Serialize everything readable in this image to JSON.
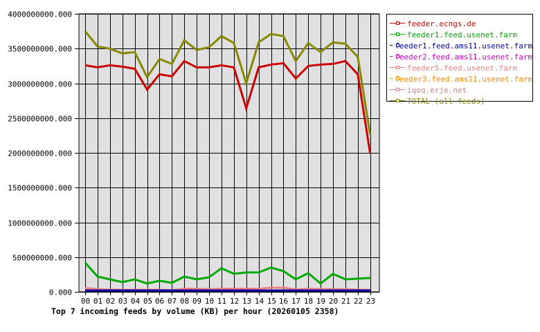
{
  "chart_data": {
    "type": "line",
    "title": "Top 7 incoming feeds by volume (KB) per hour (20260105 2358)",
    "xlabel": "",
    "ylabel": "",
    "ylim": [
      0,
      4000000000
    ],
    "grid": true,
    "legend_position": "right",
    "x": [
      "00",
      "01",
      "02",
      "03",
      "04",
      "05",
      "06",
      "07",
      "08",
      "09",
      "10",
      "11",
      "12",
      "13",
      "14",
      "15",
      "16",
      "17",
      "18",
      "19",
      "20",
      "21",
      "22",
      "23"
    ],
    "yticks": [
      "0.000",
      "500000000.000",
      "1000000000.000",
      "1500000000.000",
      "2000000000.000",
      "2500000000.000",
      "3000000000.000",
      "3500000000.000",
      "4000000000.000"
    ],
    "series": [
      {
        "name": "feeder.ecngs.de",
        "color": "#cc0000",
        "values": [
          3260000000,
          3230000000,
          3260000000,
          3240000000,
          3210000000,
          2910000000,
          3130000000,
          3100000000,
          3320000000,
          3230000000,
          3230000000,
          3260000000,
          3230000000,
          2640000000,
          3230000000,
          3270000000,
          3290000000,
          3070000000,
          3250000000,
          3270000000,
          3280000000,
          3320000000,
          3130000000,
          1990000000
        ]
      },
      {
        "name": "feeder1.feed.usenet.farm",
        "color": "#00aa00",
        "values": [
          420000000,
          220000000,
          180000000,
          140000000,
          180000000,
          120000000,
          160000000,
          130000000,
          220000000,
          180000000,
          210000000,
          340000000,
          260000000,
          280000000,
          280000000,
          350000000,
          300000000,
          180000000,
          270000000,
          120000000,
          260000000,
          180000000,
          190000000,
          200000000
        ]
      },
      {
        "name": "feeder1.feed.ams11.usenet.farm",
        "color": "#0000aa",
        "values": [
          0,
          0,
          0,
          0,
          0,
          0,
          0,
          0,
          0,
          0,
          0,
          0,
          0,
          0,
          0,
          20000000,
          0,
          0,
          0,
          0,
          0,
          0,
          0,
          0
        ]
      },
      {
        "name": "feeder2.feed.ams11.usenet.farm",
        "color": "#cc00cc",
        "values": [
          0,
          0,
          0,
          0,
          0,
          0,
          0,
          0,
          0,
          0,
          0,
          0,
          0,
          0,
          0,
          0,
          0,
          0,
          0,
          0,
          0,
          0,
          0,
          0
        ]
      },
      {
        "name": "feeder5.feed.usenet.farm",
        "color": "#f08080",
        "values": [
          55000000,
          40000000,
          30000000,
          30000000,
          30000000,
          30000000,
          30000000,
          25000000,
          45000000,
          45000000,
          40000000,
          45000000,
          45000000,
          45000000,
          45000000,
          60000000,
          60000000,
          35000000,
          45000000,
          40000000,
          40000000,
          40000000,
          30000000,
          30000000
        ]
      },
      {
        "name": "feeder3.feed.ams11.usenet.farm",
        "color": "#ff8800",
        "values": [
          5000000,
          5000000,
          5000000,
          5000000,
          5000000,
          5000000,
          5000000,
          5000000,
          5000000,
          5000000,
          5000000,
          5000000,
          5000000,
          5000000,
          5000000,
          5000000,
          5000000,
          5000000,
          5000000,
          5000000,
          5000000,
          5000000,
          5000000,
          5000000
        ]
      },
      {
        "name": "iqoq.erje.net",
        "color": "#cc8888",
        "values": [
          5000000,
          5000000,
          5000000,
          5000000,
          5000000,
          5000000,
          5000000,
          5000000,
          5000000,
          5000000,
          5000000,
          5000000,
          5000000,
          5000000,
          5000000,
          5000000,
          5000000,
          5000000,
          5000000,
          5000000,
          5000000,
          5000000,
          5000000,
          5000000
        ]
      },
      {
        "name": "TOTAL (all feeds)",
        "color": "#888800",
        "values": [
          3750000000,
          3530000000,
          3500000000,
          3430000000,
          3450000000,
          3090000000,
          3350000000,
          3280000000,
          3620000000,
          3480000000,
          3520000000,
          3680000000,
          3580000000,
          3000000000,
          3590000000,
          3710000000,
          3680000000,
          3320000000,
          3580000000,
          3450000000,
          3590000000,
          3570000000,
          3380000000,
          2260000000
        ]
      }
    ]
  },
  "legend": {
    "items": [
      {
        "label": "feeder.ecngs.de",
        "color": "#cc0000"
      },
      {
        "label": "feeder1.feed.usenet.farm",
        "color": "#00aa00"
      },
      {
        "label": "feeder1.feed.ams11.usenet.farm",
        "color": "#0000aa"
      },
      {
        "label": "feeder2.feed.ams11.usenet.farm",
        "color": "#cc00cc"
      },
      {
        "label": "feeder5.feed.usenet.farm",
        "color": "#f08080"
      },
      {
        "label": "feeder3.feed.ams11.usenet.farm",
        "color": "#ff8800"
      },
      {
        "label": "iqoq.erje.net",
        "color": "#cc8888"
      },
      {
        "label": "TOTAL (all feeds)",
        "color": "#888800"
      }
    ]
  },
  "footer": {
    "title": "Top 7 incoming feeds by volume (KB) per hour (20260105 2358)"
  }
}
